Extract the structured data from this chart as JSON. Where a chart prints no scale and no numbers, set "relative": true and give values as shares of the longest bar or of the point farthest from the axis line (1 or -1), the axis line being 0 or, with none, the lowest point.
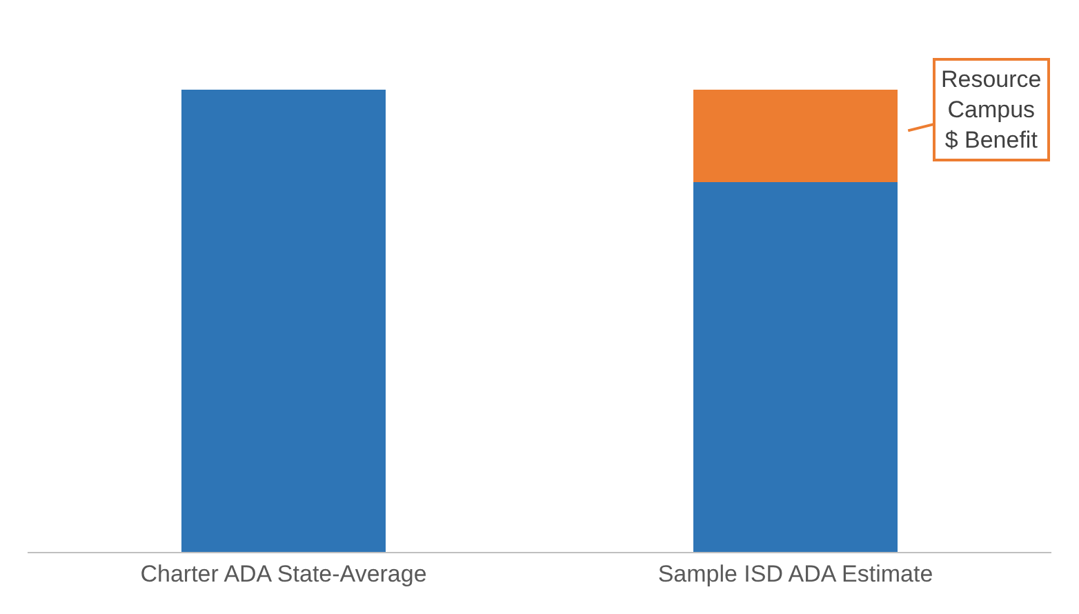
{
  "chart_data": {
    "type": "bar",
    "stacked": true,
    "relative": true,
    "categories": [
      "Charter ADA State-Average",
      "Sample ISD ADA Estimate"
    ],
    "series": [
      {
        "color": "#2e75b6",
        "values": [
          1,
          0.8
        ]
      },
      {
        "color": "#ed7d31",
        "values": [
          0,
          0.2
        ]
      }
    ],
    "annotations": [
      "Resource\nCampus\n$ Benefit"
    ]
  }
}
